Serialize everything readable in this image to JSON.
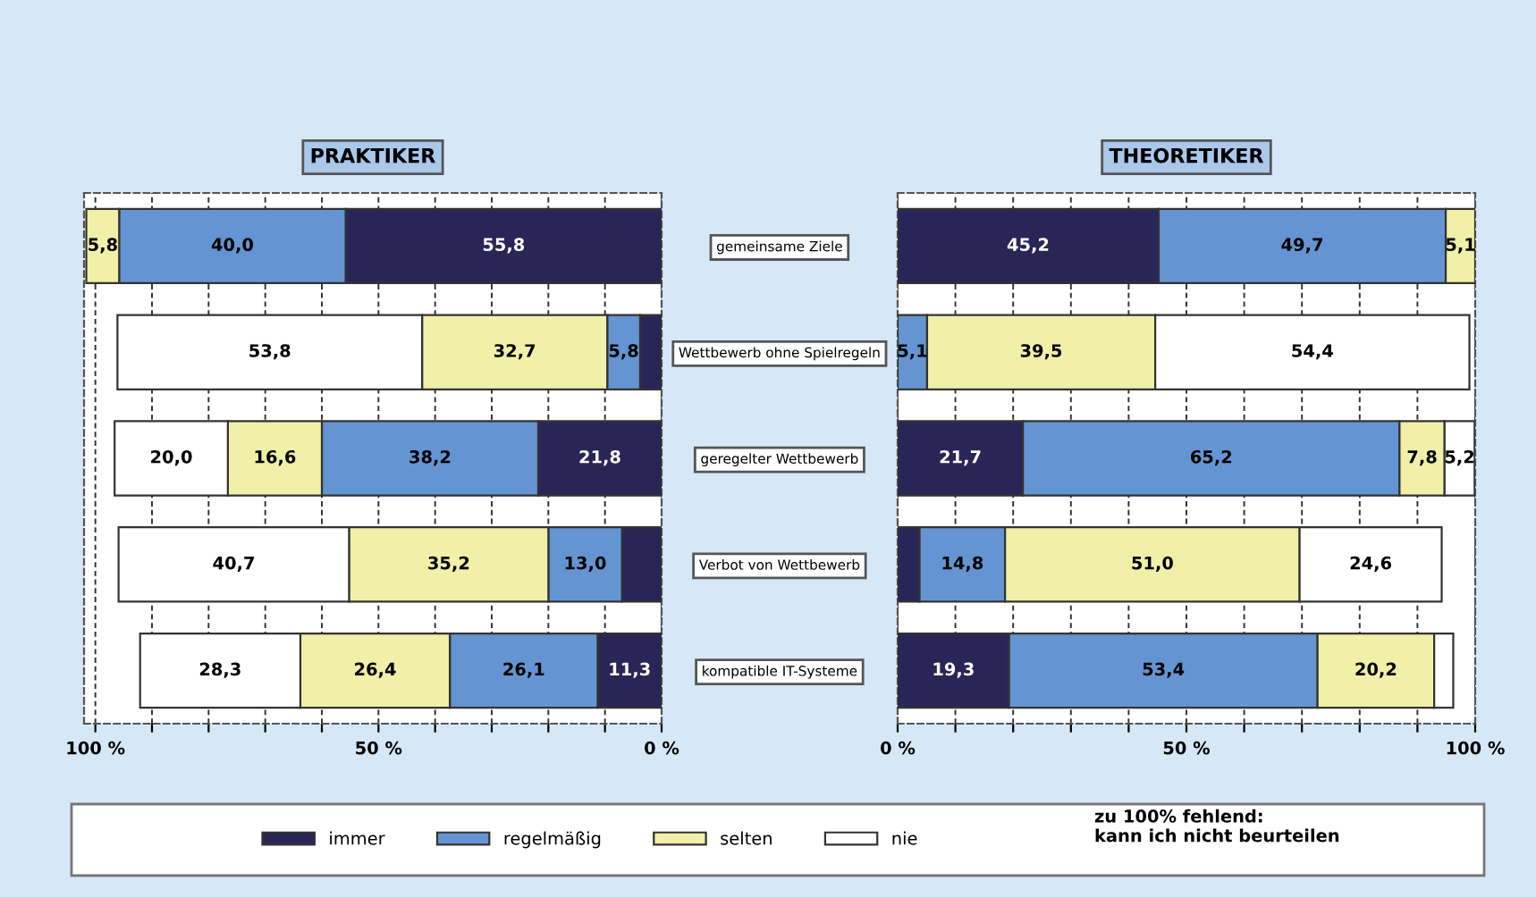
{
  "chart_data": [
    {
      "type": "bar",
      "orientation": "horizontal",
      "stacked": true,
      "title": "PRAKTIKER",
      "categories": [
        "gemeinsame Ziele",
        "Wettbewerb ohne Spielregeln",
        "geregelter Wettbewerb",
        "Verbot von Wettbewerb",
        "kompatible IT-Systeme"
      ],
      "series": [
        {
          "name": "immer",
          "color": "#2b2557",
          "values": [
            55.8,
            3.8,
            21.8,
            7.0,
            11.3
          ],
          "value_labels": [
            "55,8",
            null,
            "21,8",
            null,
            "11,3"
          ]
        },
        {
          "name": "regelmäßig",
          "color": "#6495d2",
          "values": [
            40.0,
            5.8,
            38.2,
            13.0,
            26.1
          ],
          "value_labels": [
            "40,0",
            "5,8",
            "38,2",
            "13,0",
            "26,1"
          ]
        },
        {
          "name": "selten",
          "color": "#f0f0a8",
          "values": [
            5.8,
            32.7,
            16.6,
            35.2,
            26.4
          ],
          "value_labels": [
            "5,8",
            "32,7",
            "16,6",
            "35,2",
            "26,4"
          ]
        },
        {
          "name": "nie",
          "color": "#ffffff",
          "values": [
            null,
            53.8,
            20.0,
            40.7,
            28.3
          ],
          "value_labels": [
            null,
            "53,8",
            "20,0",
            "40,7",
            "28,3"
          ]
        }
      ],
      "xlim": [
        102,
        0
      ],
      "xticks": [
        {
          "value": 100,
          "label": "100 %"
        },
        {
          "value": 90,
          "label": null
        },
        {
          "value": 80,
          "label": null
        },
        {
          "value": 70,
          "label": null
        },
        {
          "value": 60,
          "label": null
        },
        {
          "value": 50,
          "label": "50 %"
        },
        {
          "value": 40,
          "label": null
        },
        {
          "value": 30,
          "label": null
        },
        {
          "value": 20,
          "label": null
        },
        {
          "value": 10,
          "label": null
        },
        {
          "value": 0,
          "label": "0 %"
        }
      ],
      "grid": "x",
      "legend": "bottom",
      "annotations": [
        "zu 100% fehlend:\nkann ich nicht beurteilen"
      ]
    },
    {
      "type": "bar",
      "orientation": "horizontal",
      "stacked": true,
      "title": "THEORETIKER",
      "categories": [
        null,
        null,
        null,
        null,
        null
      ],
      "series": [
        {
          "color": "#2b2557",
          "values": [
            45.2,
            null,
            21.7,
            3.8,
            19.3
          ],
          "value_labels": [
            "45,2",
            null,
            "21,7",
            null,
            "19,3"
          ]
        },
        {
          "color": "#6495d2",
          "values": [
            49.7,
            5.1,
            65.2,
            14.8,
            53.4
          ],
          "value_labels": [
            "49,7",
            "5,1",
            "65,2",
            "14,8",
            "53,4"
          ]
        },
        {
          "color": "#f0f0a8",
          "values": [
            5.1,
            39.5,
            7.8,
            51.0,
            20.2
          ],
          "value_labels": [
            "5,1",
            "39,5",
            "7,8",
            "51,0",
            "20,2"
          ]
        },
        {
          "color": "#ffffff",
          "values": [
            null,
            54.4,
            5.2,
            24.6,
            3.3
          ],
          "value_labels": [
            null,
            "54,4",
            "5,2",
            "24,6",
            null
          ]
        }
      ],
      "xlim": [
        0,
        100
      ],
      "xticks": [
        {
          "value": 0,
          "label": "0 %"
        },
        {
          "value": 10,
          "label": null
        },
        {
          "value": 20,
          "label": null
        },
        {
          "value": 30,
          "label": null
        },
        {
          "value": 40,
          "label": null
        },
        {
          "value": 50,
          "label": "50 %"
        },
        {
          "value": 60,
          "label": null
        },
        {
          "value": 70,
          "label": null
        },
        {
          "value": 80,
          "label": null
        },
        {
          "value": 90,
          "label": null
        },
        {
          "value": 100,
          "label": "100 %"
        }
      ],
      "grid": "x",
      "tick_labels": "x"
    }
  ]
}
